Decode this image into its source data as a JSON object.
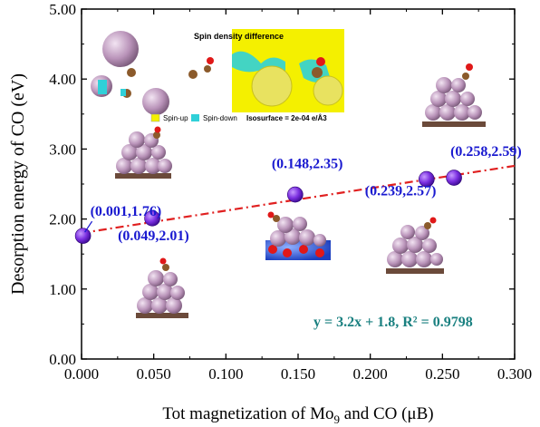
{
  "chart_data": {
    "type": "scatter",
    "xlabel_main": "Tot magnetization of Mo",
    "xlabel_sub": "9",
    "xlabel_end": " and CO (μB)",
    "ylabel": "Desorption energy of CO (eV)",
    "xlim": [
      0,
      0.3
    ],
    "ylim": [
      0,
      5
    ],
    "x_ticks": [
      "0.000",
      "0.050",
      "0.100",
      "0.150",
      "0.200",
      "0.250",
      "0.300"
    ],
    "y_ticks": [
      "0.00",
      "1.00",
      "2.00",
      "3.00",
      "4.00",
      "5.00"
    ],
    "grid": false,
    "points": [
      {
        "x": 0.001,
        "y": 1.76,
        "label": "(0.001,1.76)"
      },
      {
        "x": 0.049,
        "y": 2.01,
        "label": "(0.049,2.01)"
      },
      {
        "x": 0.148,
        "y": 2.35,
        "label": "(0.148,2.35)"
      },
      {
        "x": 0.239,
        "y": 2.57,
        "label": "(0.239,2.57)"
      },
      {
        "x": 0.258,
        "y": 2.59,
        "label": "(0.258,2.59)"
      }
    ],
    "fit": {
      "slope": 3.2,
      "intercept": 1.8,
      "equation": "y = 3.2x + 1.8, R² = 0.9798"
    },
    "colors": {
      "point": "#7b2fe0",
      "label": "#1a1ad0",
      "fit": "#e02020",
      "equation": "#1a8080"
    }
  },
  "inset": {
    "title": "Spin density difference",
    "legend_up": "Spin-up",
    "legend_down": "Spin-down",
    "isosurface": "Isosurface = 2e-04 e/Å3",
    "colors": {
      "up": "#f4f000",
      "down": "#30d0d8",
      "atom": "#c9a9c9",
      "carbon": "#8b5a2b",
      "oxygen": "#e01818"
    }
  }
}
